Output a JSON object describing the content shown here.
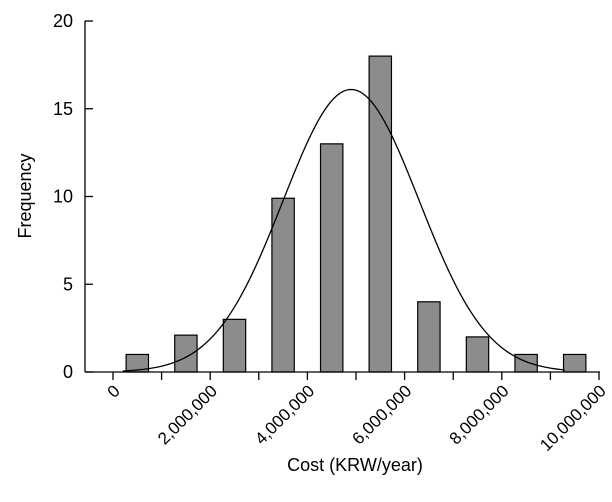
{
  "chart_data": {
    "type": "bar",
    "title": "",
    "xlabel": "Cost (KRW/year)",
    "ylabel": "Frequency",
    "xlim": [
      0,
      10000000
    ],
    "ylim": [
      0,
      20
    ],
    "x_ticks": [
      0,
      2000000,
      4000000,
      6000000,
      8000000,
      10000000
    ],
    "x_tick_labels": [
      "0",
      "2,000,000",
      "4,000,000",
      "6,000,000",
      "8,000,000",
      "10,000,000"
    ],
    "y_ticks": [
      0,
      5,
      10,
      15,
      20
    ],
    "y_tick_labels": [
      "0",
      "5",
      "10",
      "15",
      "20"
    ],
    "bin_width": 1000000,
    "bin_centers": [
      500000,
      1500000,
      2500000,
      3500000,
      4500000,
      5500000,
      6500000,
      7500000,
      8500000,
      9500000
    ],
    "values": [
      1,
      2.1,
      3,
      9.9,
      13,
      18,
      4,
      2,
      1,
      1
    ],
    "bar_color": "#8c8c8c",
    "overlay": {
      "type": "normal_curve",
      "peak_x": 4900000,
      "peak_y": 16.1,
      "sd": 1400000
    },
    "grid": false,
    "legend": "none"
  }
}
